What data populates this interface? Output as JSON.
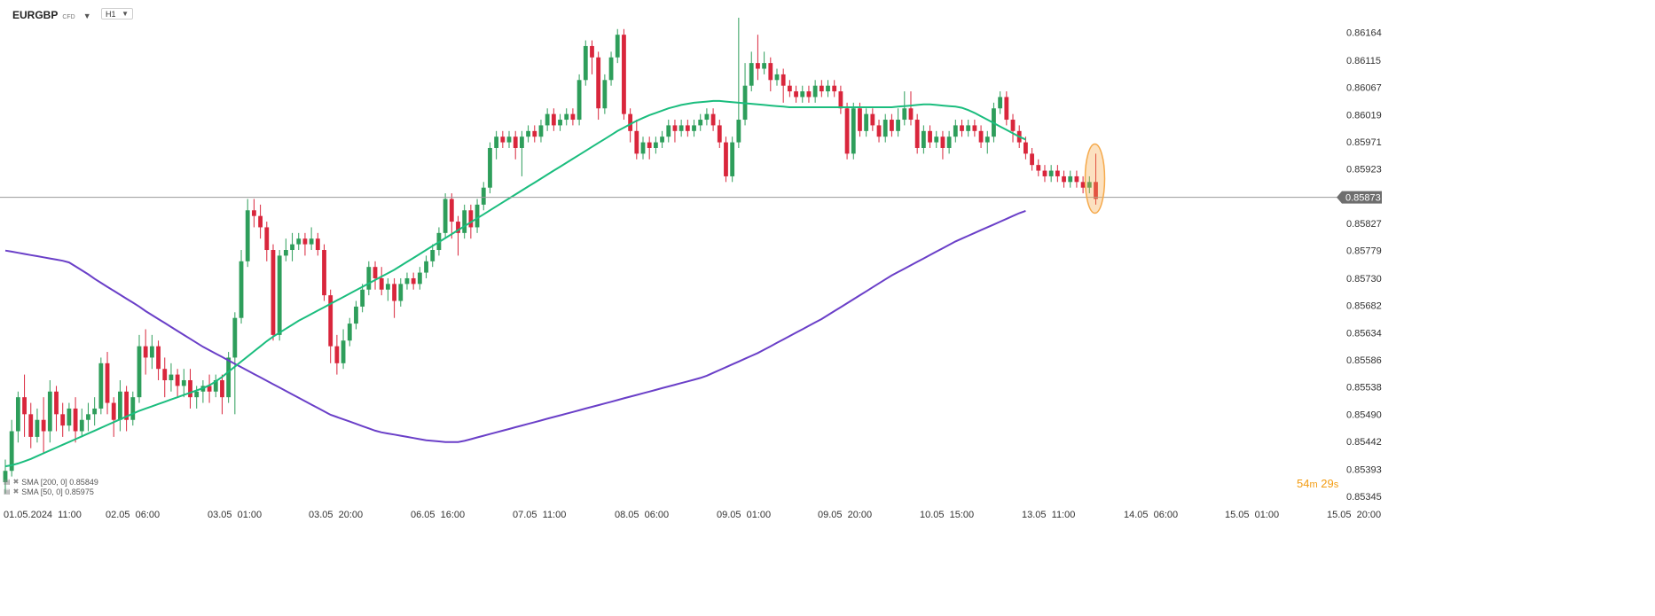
{
  "header": {
    "symbol": "EURGBP",
    "symbol_type": "CFD",
    "timeframe": "H1"
  },
  "indicators": [
    {
      "label": "SMA [200, 0] 0.85849",
      "color": "#6a3fc8"
    },
    {
      "label": "SMA [50, 0] 0.85975",
      "color": "#1bbd7e"
    }
  ],
  "timer": {
    "minutes": "54",
    "minutes_unit": "m",
    "seconds": "29",
    "seconds_unit": "s"
  },
  "colors": {
    "up": "#2e9e5b",
    "down": "#d9263c",
    "sma200": "#6a3fc8",
    "sma50": "#1bbd7e",
    "price_line": "#9a9a9a",
    "highlight": "#f5a94a"
  },
  "chart_data": {
    "type": "candlestick",
    "instrument": "EURGBP",
    "timeframe": "H1",
    "ylim": [
      0.85345,
      0.8619
    ],
    "y_ticks": [
      "0.86164",
      "0.86115",
      "0.86067",
      "0.86019",
      "0.85971",
      "0.85923",
      "0.85827",
      "0.85779",
      "0.85730",
      "0.85682",
      "0.85634",
      "0.85586",
      "0.85538",
      "0.85490",
      "0.85442",
      "0.85393",
      "0.85345"
    ],
    "current_price": "0.85873",
    "x_tick_labels": [
      "01.05.2024  11:00",
      "02.05  06:00",
      "03.05  01:00",
      "03.05  20:00",
      "06.05  16:00",
      "07.05  11:00",
      "08.05  06:00",
      "09.05  01:00",
      "09.05  20:00",
      "10.05  15:00",
      "13.05  11:00",
      "14.05  06:00",
      "15.05  01:00",
      "15.05  20:00"
    ],
    "candles": [
      [
        0.8537,
        0.8539,
        0.8535,
        0.8541
      ],
      [
        0.8539,
        0.8546,
        0.8538,
        0.8548
      ],
      [
        0.8546,
        0.8552,
        0.8544,
        0.8553
      ],
      [
        0.8552,
        0.8549,
        0.8545,
        0.8556
      ],
      [
        0.8549,
        0.8545,
        0.8543,
        0.8551
      ],
      [
        0.8545,
        0.8548,
        0.8544,
        0.855
      ],
      [
        0.8548,
        0.8546,
        0.8542,
        0.8552
      ],
      [
        0.8546,
        0.8553,
        0.8544,
        0.8555
      ],
      [
        0.8553,
        0.8549,
        0.8546,
        0.8554
      ],
      [
        0.8549,
        0.8547,
        0.8545,
        0.8551
      ],
      [
        0.8547,
        0.855,
        0.8546,
        0.8551
      ],
      [
        0.855,
        0.8546,
        0.8544,
        0.8552
      ],
      [
        0.8546,
        0.8548,
        0.8545,
        0.855
      ],
      [
        0.8548,
        0.8549,
        0.8546,
        0.8551
      ],
      [
        0.8549,
        0.855,
        0.8547,
        0.8552
      ],
      [
        0.855,
        0.8558,
        0.8549,
        0.8559
      ],
      [
        0.8558,
        0.8551,
        0.8549,
        0.856
      ],
      [
        0.8551,
        0.8548,
        0.8545,
        0.8552
      ],
      [
        0.8548,
        0.8553,
        0.8546,
        0.8555
      ],
      [
        0.8553,
        0.8548,
        0.8546,
        0.8554
      ],
      [
        0.8548,
        0.8552,
        0.8547,
        0.8553
      ],
      [
        0.8552,
        0.8561,
        0.8551,
        0.8563
      ],
      [
        0.8561,
        0.8559,
        0.8556,
        0.8564
      ],
      [
        0.8559,
        0.8561,
        0.8557,
        0.8563
      ],
      [
        0.8561,
        0.8557,
        0.8555,
        0.8562
      ],
      [
        0.8557,
        0.8555,
        0.8552,
        0.8559
      ],
      [
        0.8555,
        0.8556,
        0.8553,
        0.8558
      ],
      [
        0.8556,
        0.8554,
        0.8552,
        0.8557
      ],
      [
        0.8554,
        0.8555,
        0.8552,
        0.8557
      ],
      [
        0.8555,
        0.8552,
        0.855,
        0.8557
      ],
      [
        0.8552,
        0.8553,
        0.855,
        0.8554
      ],
      [
        0.8553,
        0.8554,
        0.8551,
        0.8555
      ],
      [
        0.8554,
        0.8553,
        0.8551,
        0.8556
      ],
      [
        0.8553,
        0.8555,
        0.8552,
        0.8556
      ],
      [
        0.8555,
        0.8552,
        0.8549,
        0.8556
      ],
      [
        0.8552,
        0.8559,
        0.8551,
        0.856
      ],
      [
        0.8559,
        0.8566,
        0.8549,
        0.8567
      ],
      [
        0.8566,
        0.8576,
        0.8565,
        0.8578
      ],
      [
        0.8576,
        0.8585,
        0.8575,
        0.8587
      ],
      [
        0.8585,
        0.8584,
        0.8582,
        0.8587
      ],
      [
        0.8584,
        0.8582,
        0.858,
        0.8586
      ],
      [
        0.8582,
        0.8578,
        0.8576,
        0.8583
      ],
      [
        0.8578,
        0.8563,
        0.8562,
        0.8579
      ],
      [
        0.8563,
        0.8577,
        0.8562,
        0.8578
      ],
      [
        0.8577,
        0.8578,
        0.8576,
        0.858
      ],
      [
        0.8578,
        0.8579,
        0.8576,
        0.8581
      ],
      [
        0.8579,
        0.858,
        0.8578,
        0.8581
      ],
      [
        0.858,
        0.8579,
        0.8577,
        0.8581
      ],
      [
        0.8579,
        0.858,
        0.8578,
        0.8582
      ],
      [
        0.858,
        0.8578,
        0.8577,
        0.8581
      ],
      [
        0.8578,
        0.857,
        0.8569,
        0.8579
      ],
      [
        0.857,
        0.8561,
        0.8558,
        0.8571
      ],
      [
        0.8561,
        0.8558,
        0.8556,
        0.8563
      ],
      [
        0.8558,
        0.8562,
        0.8557,
        0.8564
      ],
      [
        0.8562,
        0.8565,
        0.8561,
        0.8566
      ],
      [
        0.8565,
        0.8568,
        0.8564,
        0.8569
      ],
      [
        0.8568,
        0.8571,
        0.8567,
        0.8572
      ],
      [
        0.8571,
        0.8575,
        0.857,
        0.8576
      ],
      [
        0.8575,
        0.8573,
        0.8571,
        0.8576
      ],
      [
        0.8573,
        0.8571,
        0.857,
        0.8575
      ],
      [
        0.8571,
        0.8572,
        0.8569,
        0.8573
      ],
      [
        0.8572,
        0.8569,
        0.8566,
        0.8573
      ],
      [
        0.8569,
        0.8572,
        0.8568,
        0.8573
      ],
      [
        0.8572,
        0.8573,
        0.8571,
        0.8574
      ],
      [
        0.8573,
        0.8572,
        0.8571,
        0.8574
      ],
      [
        0.8572,
        0.8574,
        0.8571,
        0.8575
      ],
      [
        0.8574,
        0.8576,
        0.8573,
        0.8577
      ],
      [
        0.8576,
        0.8578,
        0.8575,
        0.8579
      ],
      [
        0.8578,
        0.8581,
        0.8577,
        0.8582
      ],
      [
        0.8581,
        0.8587,
        0.858,
        0.8588
      ],
      [
        0.8587,
        0.8583,
        0.858,
        0.8588
      ],
      [
        0.8583,
        0.8581,
        0.8577,
        0.8584
      ],
      [
        0.8581,
        0.8585,
        0.858,
        0.8586
      ],
      [
        0.8585,
        0.8582,
        0.858,
        0.8586
      ],
      [
        0.8582,
        0.8586,
        0.8581,
        0.8587
      ],
      [
        0.8586,
        0.8589,
        0.8585,
        0.859
      ],
      [
        0.8589,
        0.8596,
        0.8588,
        0.8597
      ],
      [
        0.8596,
        0.8598,
        0.8594,
        0.8599
      ],
      [
        0.8598,
        0.8597,
        0.8596,
        0.8599
      ],
      [
        0.8597,
        0.8598,
        0.8596,
        0.8599
      ],
      [
        0.8598,
        0.8596,
        0.8594,
        0.8599
      ],
      [
        0.8596,
        0.8598,
        0.8591,
        0.8599
      ],
      [
        0.8598,
        0.8599,
        0.8597,
        0.86
      ],
      [
        0.8599,
        0.8598,
        0.8597,
        0.86
      ],
      [
        0.8598,
        0.86,
        0.8597,
        0.8601
      ],
      [
        0.86,
        0.8602,
        0.8599,
        0.8603
      ],
      [
        0.8602,
        0.86,
        0.8599,
        0.8603
      ],
      [
        0.86,
        0.8601,
        0.8599,
        0.8602
      ],
      [
        0.8601,
        0.8602,
        0.86,
        0.8603
      ],
      [
        0.8602,
        0.8601,
        0.86,
        0.8603
      ],
      [
        0.8601,
        0.8608,
        0.86,
        0.8609
      ],
      [
        0.8608,
        0.8614,
        0.8607,
        0.8615
      ],
      [
        0.8614,
        0.8612,
        0.8609,
        0.8615
      ],
      [
        0.8612,
        0.8603,
        0.8601,
        0.8613
      ],
      [
        0.8603,
        0.8608,
        0.8602,
        0.8609
      ],
      [
        0.8608,
        0.8612,
        0.8607,
        0.8613
      ],
      [
        0.8612,
        0.8616,
        0.8611,
        0.8617
      ],
      [
        0.8616,
        0.8602,
        0.8601,
        0.8617
      ],
      [
        0.8602,
        0.8599,
        0.8597,
        0.8603
      ],
      [
        0.8599,
        0.8595,
        0.8594,
        0.8601
      ],
      [
        0.8595,
        0.8597,
        0.8594,
        0.8598
      ],
      [
        0.8597,
        0.8596,
        0.8594,
        0.8598
      ],
      [
        0.8596,
        0.8597,
        0.8595,
        0.8598
      ],
      [
        0.8597,
        0.8598,
        0.8596,
        0.8599
      ],
      [
        0.8598,
        0.86,
        0.8597,
        0.8601
      ],
      [
        0.86,
        0.8599,
        0.8597,
        0.8601
      ],
      [
        0.8599,
        0.86,
        0.8598,
        0.8601
      ],
      [
        0.86,
        0.8599,
        0.8598,
        0.8601
      ],
      [
        0.8599,
        0.86,
        0.8598,
        0.8601
      ],
      [
        0.86,
        0.8601,
        0.8599,
        0.8602
      ],
      [
        0.8601,
        0.8602,
        0.86,
        0.8603
      ],
      [
        0.8602,
        0.86,
        0.8599,
        0.8603
      ],
      [
        0.86,
        0.8597,
        0.8596,
        0.8601
      ],
      [
        0.8597,
        0.8591,
        0.859,
        0.8598
      ],
      [
        0.8591,
        0.8597,
        0.859,
        0.8598
      ],
      [
        0.8597,
        0.8601,
        0.8596,
        0.8619
      ],
      [
        0.8601,
        0.8607,
        0.86,
        0.8611
      ],
      [
        0.8607,
        0.8611,
        0.8606,
        0.8613
      ],
      [
        0.8611,
        0.861,
        0.8608,
        0.8616
      ],
      [
        0.861,
        0.8611,
        0.8609,
        0.8613
      ],
      [
        0.8611,
        0.8608,
        0.8606,
        0.8612
      ],
      [
        0.8608,
        0.8609,
        0.8607,
        0.861
      ],
      [
        0.8609,
        0.8607,
        0.8604,
        0.861
      ],
      [
        0.8607,
        0.8606,
        0.8605,
        0.8608
      ],
      [
        0.8606,
        0.8605,
        0.8604,
        0.8607
      ],
      [
        0.8605,
        0.8606,
        0.8604,
        0.8607
      ],
      [
        0.8606,
        0.8605,
        0.8604,
        0.8607
      ],
      [
        0.8605,
        0.8607,
        0.8604,
        0.8608
      ],
      [
        0.8607,
        0.8606,
        0.8605,
        0.8608
      ],
      [
        0.8606,
        0.8607,
        0.8605,
        0.8608
      ],
      [
        0.8607,
        0.8606,
        0.8605,
        0.8608
      ],
      [
        0.8606,
        0.8603,
        0.8602,
        0.8607
      ],
      [
        0.8603,
        0.8595,
        0.8594,
        0.8604
      ],
      [
        0.8595,
        0.8603,
        0.8594,
        0.8604
      ],
      [
        0.8603,
        0.8599,
        0.8598,
        0.8604
      ],
      [
        0.8599,
        0.8602,
        0.8598,
        0.8603
      ],
      [
        0.8602,
        0.86,
        0.8599,
        0.8603
      ],
      [
        0.86,
        0.8598,
        0.8597,
        0.8601
      ],
      [
        0.8598,
        0.8601,
        0.8597,
        0.8602
      ],
      [
        0.8601,
        0.8599,
        0.8598,
        0.8602
      ],
      [
        0.8599,
        0.8601,
        0.8598,
        0.8603
      ],
      [
        0.8601,
        0.8603,
        0.86,
        0.8606
      ],
      [
        0.8603,
        0.8601,
        0.86,
        0.8606
      ],
      [
        0.8601,
        0.8596,
        0.8595,
        0.8602
      ],
      [
        0.8596,
        0.8599,
        0.8595,
        0.86
      ],
      [
        0.8599,
        0.8597,
        0.8596,
        0.86
      ],
      [
        0.8597,
        0.8598,
        0.8596,
        0.8599
      ],
      [
        0.8598,
        0.8596,
        0.8594,
        0.8599
      ],
      [
        0.8596,
        0.8598,
        0.8595,
        0.8599
      ],
      [
        0.8598,
        0.86,
        0.8597,
        0.8601
      ],
      [
        0.86,
        0.8599,
        0.8598,
        0.8601
      ],
      [
        0.8599,
        0.86,
        0.8598,
        0.8601
      ],
      [
        0.86,
        0.8599,
        0.8598,
        0.8601
      ],
      [
        0.8599,
        0.8597,
        0.8596,
        0.86
      ],
      [
        0.8597,
        0.8598,
        0.8595,
        0.8599
      ],
      [
        0.8598,
        0.8603,
        0.8597,
        0.8604
      ],
      [
        0.8603,
        0.8605,
        0.8602,
        0.8606
      ],
      [
        0.8605,
        0.8601,
        0.86,
        0.8606
      ],
      [
        0.8601,
        0.8599,
        0.8597,
        0.8602
      ],
      [
        0.8599,
        0.8597,
        0.8596,
        0.86
      ],
      [
        0.8597,
        0.8595,
        0.8594,
        0.8598
      ],
      [
        0.8595,
        0.8593,
        0.8592,
        0.8596
      ],
      [
        0.8593,
        0.8592,
        0.8591,
        0.8594
      ],
      [
        0.8592,
        0.8591,
        0.859,
        0.8593
      ],
      [
        0.8591,
        0.8592,
        0.859,
        0.8593
      ],
      [
        0.8592,
        0.8591,
        0.859,
        0.8593
      ],
      [
        0.8591,
        0.859,
        0.8589,
        0.8592
      ],
      [
        0.859,
        0.8591,
        0.8589,
        0.8592
      ],
      [
        0.8591,
        0.859,
        0.8589,
        0.8592
      ],
      [
        0.859,
        0.8589,
        0.8588,
        0.8591
      ],
      [
        0.8589,
        0.859,
        0.8588,
        0.8591
      ],
      [
        0.859,
        0.8587,
        0.8586,
        0.8595
      ]
    ],
    "sma200": [
      0.85779,
      0.85777,
      0.85775,
      0.85773,
      0.85771,
      0.85769,
      0.85767,
      0.85765,
      0.85763,
      0.85761,
      0.85758,
      0.85751,
      0.85744,
      0.85737,
      0.85729,
      0.85722,
      0.85715,
      0.85708,
      0.85701,
      0.85694,
      0.85687,
      0.8568,
      0.85672,
      0.85665,
      0.85658,
      0.85651,
      0.85644,
      0.85637,
      0.8563,
      0.85623,
      0.85616,
      0.85609,
      0.85603,
      0.85597,
      0.85591,
      0.85585,
      0.85579,
      0.85573,
      0.85567,
      0.85561,
      0.85555,
      0.85549,
      0.85543,
      0.85537,
      0.85531,
      0.85525,
      0.85519,
      0.85513,
      0.85507,
      0.85501,
      0.85495,
      0.85489,
      0.85485,
      0.85481,
      0.85477,
      0.85473,
      0.85469,
      0.85465,
      0.85461,
      0.85458,
      0.85456,
      0.85454,
      0.85452,
      0.8545,
      0.85448,
      0.85446,
      0.85444,
      0.85443,
      0.85442,
      0.85441,
      0.85441,
      0.85441,
      0.85443,
      0.85446,
      0.85449,
      0.85452,
      0.85455,
      0.85458,
      0.85461,
      0.85464,
      0.85467,
      0.8547,
      0.85473,
      0.85476,
      0.85479,
      0.85482,
      0.85485,
      0.85488,
      0.85491,
      0.85494,
      0.85497,
      0.855,
      0.85503,
      0.85506,
      0.85509,
      0.85512,
      0.85515,
      0.85518,
      0.85521,
      0.85524,
      0.85527,
      0.8553,
      0.85533,
      0.85536,
      0.85539,
      0.85542,
      0.85545,
      0.85548,
      0.85551,
      0.85554,
      0.85558,
      0.85563,
      0.85568,
      0.85573,
      0.85578,
      0.85583,
      0.85588,
      0.85593,
      0.85598,
      0.85604,
      0.8561,
      0.85616,
      0.85622,
      0.85628,
      0.85634,
      0.8564,
      0.85646,
      0.85652,
      0.85658,
      0.85665,
      0.85672,
      0.85679,
      0.85686,
      0.85693,
      0.857,
      0.85707,
      0.85714,
      0.85721,
      0.85728,
      0.85735,
      0.85741,
      0.85747,
      0.85753,
      0.85759,
      0.85765,
      0.85771,
      0.85777,
      0.85783,
      0.85789,
      0.85795,
      0.858,
      0.85805,
      0.8581,
      0.85815,
      0.8582,
      0.85825,
      0.8583,
      0.85835,
      0.8584,
      0.85845,
      0.85849
    ],
    "sma50": [
      0.85398,
      0.854,
      0.85403,
      0.85407,
      0.85411,
      0.85416,
      0.85421,
      0.85426,
      0.85431,
      0.85436,
      0.85441,
      0.85446,
      0.85451,
      0.85456,
      0.85461,
      0.85466,
      0.85471,
      0.85476,
      0.85481,
      0.85486,
      0.85491,
      0.85496,
      0.855,
      0.85504,
      0.85508,
      0.85512,
      0.85516,
      0.8552,
      0.85524,
      0.85528,
      0.85532,
      0.85536,
      0.85541,
      0.85548,
      0.85556,
      0.85565,
      0.85574,
      0.85583,
      0.85592,
      0.85601,
      0.8561,
      0.85619,
      0.85627,
      0.85634,
      0.85641,
      0.85648,
      0.85655,
      0.85661,
      0.85667,
      0.85673,
      0.85679,
      0.85685,
      0.85691,
      0.85697,
      0.85703,
      0.85709,
      0.85715,
      0.85721,
      0.85727,
      0.85733,
      0.85739,
      0.85745,
      0.85752,
      0.85759,
      0.85766,
      0.85773,
      0.8578,
      0.85787,
      0.85794,
      0.85801,
      0.85808,
      0.85815,
      0.85822,
      0.85829,
      0.85836,
      0.85843,
      0.8585,
      0.85857,
      0.85864,
      0.85871,
      0.85878,
      0.85885,
      0.85892,
      0.85899,
      0.85906,
      0.85913,
      0.8592,
      0.85927,
      0.85934,
      0.85941,
      0.85948,
      0.85955,
      0.85962,
      0.85969,
      0.85976,
      0.85983,
      0.8599,
      0.85996,
      0.86002,
      0.86008,
      0.86013,
      0.86018,
      0.86022,
      0.86026,
      0.8603,
      0.86033,
      0.86036,
      0.86038,
      0.8604,
      0.86041,
      0.86042,
      0.86043,
      0.86043,
      0.86042,
      0.86041,
      0.8604,
      0.86039,
      0.86038,
      0.86037,
      0.86036,
      0.86035,
      0.86034,
      0.86033,
      0.86032,
      0.86032,
      0.86032,
      0.86032,
      0.86032,
      0.86032,
      0.86032,
      0.86032,
      0.86032,
      0.86032,
      0.86032,
      0.86032,
      0.86032,
      0.86032,
      0.86032,
      0.86032,
      0.86032,
      0.86033,
      0.86034,
      0.86035,
      0.86036,
      0.86037,
      0.86037,
      0.86036,
      0.86035,
      0.86034,
      0.86033,
      0.86031,
      0.86027,
      0.86022,
      0.86016,
      0.8601,
      0.86004,
      0.85998,
      0.85992,
      0.85986,
      0.8598,
      0.85975
    ]
  }
}
